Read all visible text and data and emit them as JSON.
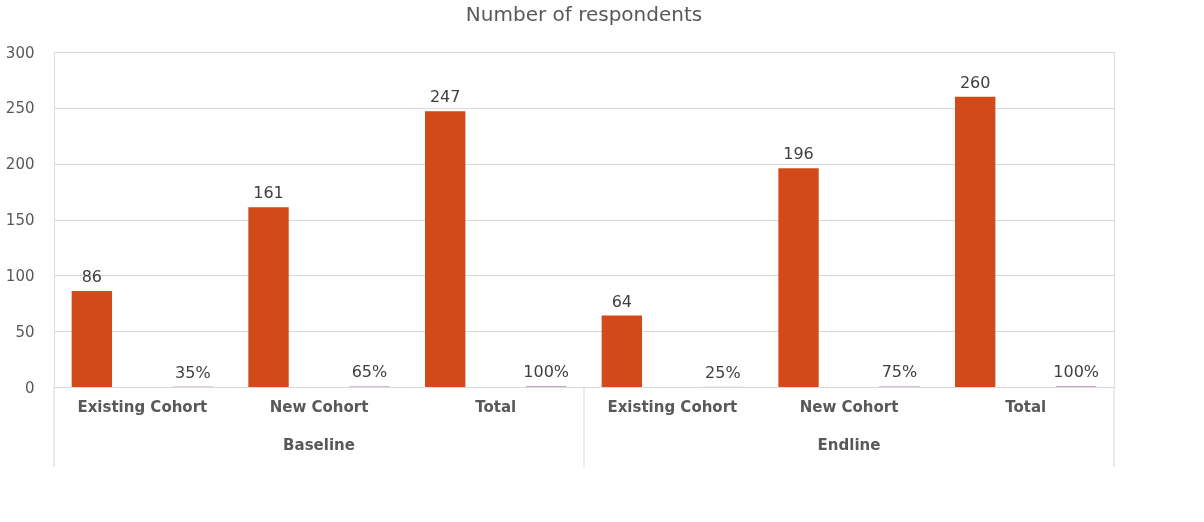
{
  "chart_data": {
    "type": "bar",
    "title": "Number of respondents",
    "categories": [
      "Existing Cohort",
      "New Cohort",
      "Total",
      "Existing Cohort",
      "New Cohort",
      "Total"
    ],
    "series": [
      {
        "color": "#d2491a",
        "values": [
          86,
          161,
          247,
          64,
          196,
          260
        ],
        "value_labels": [
          "86",
          "161",
          "247",
          "64",
          "196",
          "260"
        ]
      },
      {
        "color": "#c8a2c8",
        "values": [
          0.35,
          0.65,
          1,
          0.25,
          0.75,
          1
        ],
        "value_labels": [
          "35%",
          "65%",
          "100%",
          "25%",
          "75%",
          "100%"
        ]
      }
    ],
    "annotations": [
      "Baseline",
      "Endline"
    ],
    "ylim": [
      0,
      300
    ],
    "yticks": [
      0,
      50,
      100,
      150,
      200,
      250,
      300
    ],
    "grid": "y"
  }
}
